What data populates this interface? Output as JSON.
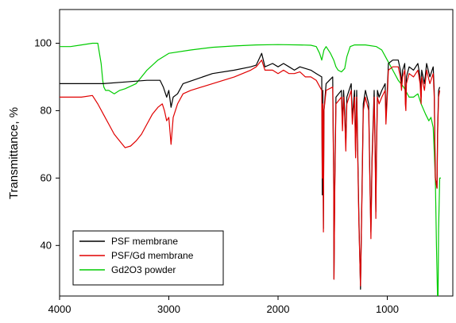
{
  "chart_data": {
    "type": "line",
    "title": "",
    "xlabel": "",
    "ylabel": "Transmittance, %",
    "xlim": [
      4000,
      400
    ],
    "ylim": [
      25,
      110
    ],
    "x_reversed": true,
    "xticks": [
      4000,
      3000,
      2000,
      1000
    ],
    "yticks": [
      40,
      60,
      80,
      100
    ],
    "grid": false,
    "legend_position": "bottom-left",
    "series": [
      {
        "name": "PSF membrane",
        "color": "#000000",
        "points": [
          [
            4000,
            88
          ],
          [
            3800,
            88
          ],
          [
            3600,
            88
          ],
          [
            3400,
            88.5
          ],
          [
            3200,
            89
          ],
          [
            3080,
            89
          ],
          [
            3050,
            87
          ],
          [
            3020,
            84
          ],
          [
            3000,
            86
          ],
          [
            2980,
            81
          ],
          [
            2960,
            84
          ],
          [
            2920,
            85
          ],
          [
            2870,
            88
          ],
          [
            2600,
            91
          ],
          [
            2400,
            92
          ],
          [
            2250,
            93
          ],
          [
            2200,
            93.5
          ],
          [
            2150,
            97
          ],
          [
            2120,
            93
          ],
          [
            2050,
            94
          ],
          [
            2000,
            93
          ],
          [
            1950,
            94
          ],
          [
            1900,
            93
          ],
          [
            1850,
            92
          ],
          [
            1800,
            93
          ],
          [
            1750,
            92.5
          ],
          [
            1700,
            92
          ],
          [
            1650,
            91
          ],
          [
            1600,
            90
          ],
          [
            1595,
            55
          ],
          [
            1590,
            86
          ],
          [
            1585,
            45
          ],
          [
            1580,
            80
          ],
          [
            1560,
            88
          ],
          [
            1500,
            90
          ],
          [
            1490,
            58
          ],
          [
            1488,
            30
          ],
          [
            1480,
            60
          ],
          [
            1470,
            84
          ],
          [
            1420,
            86
          ],
          [
            1410,
            76
          ],
          [
            1400,
            86
          ],
          [
            1390,
            80
          ],
          [
            1380,
            70
          ],
          [
            1370,
            84
          ],
          [
            1330,
            88
          ],
          [
            1320,
            78
          ],
          [
            1300,
            86
          ],
          [
            1290,
            68
          ],
          [
            1280,
            86
          ],
          [
            1260,
            48
          ],
          [
            1245,
            27
          ],
          [
            1230,
            60
          ],
          [
            1220,
            82
          ],
          [
            1200,
            86
          ],
          [
            1170,
            82
          ],
          [
            1160,
            62
          ],
          [
            1150,
            44
          ],
          [
            1140,
            66
          ],
          [
            1120,
            86
          ],
          [
            1110,
            66
          ],
          [
            1105,
            50
          ],
          [
            1100,
            66
          ],
          [
            1090,
            86
          ],
          [
            1075,
            84
          ],
          [
            1050,
            86
          ],
          [
            1020,
            88
          ],
          [
            1012,
            78
          ],
          [
            1000,
            86
          ],
          [
            990,
            94
          ],
          [
            950,
            95
          ],
          [
            900,
            95
          ],
          [
            880,
            92
          ],
          [
            870,
            88
          ],
          [
            860,
            92
          ],
          [
            840,
            94
          ],
          [
            835,
            84
          ],
          [
            830,
            82
          ],
          [
            825,
            90
          ],
          [
            800,
            93
          ],
          [
            760,
            92
          ],
          [
            720,
            94
          ],
          [
            700,
            90
          ],
          [
            690,
            84
          ],
          [
            685,
            92
          ],
          [
            660,
            88
          ],
          [
            640,
            94
          ],
          [
            610,
            90
          ],
          [
            580,
            93
          ],
          [
            570,
            86
          ],
          [
            560,
            60
          ],
          [
            545,
            57
          ],
          [
            540,
            74
          ],
          [
            530,
            86
          ],
          [
            520,
            87
          ]
        ]
      },
      {
        "name": "PSF/Gd membrane",
        "color": "#e00000",
        "points": [
          [
            4000,
            84
          ],
          [
            3800,
            84
          ],
          [
            3700,
            84.5
          ],
          [
            3650,
            82
          ],
          [
            3600,
            79
          ],
          [
            3550,
            76
          ],
          [
            3500,
            73
          ],
          [
            3450,
            71
          ],
          [
            3400,
            69
          ],
          [
            3350,
            69.5
          ],
          [
            3300,
            71
          ],
          [
            3250,
            73
          ],
          [
            3200,
            76
          ],
          [
            3150,
            79
          ],
          [
            3100,
            81
          ],
          [
            3060,
            82
          ],
          [
            3040,
            80
          ],
          [
            3020,
            77
          ],
          [
            3000,
            78
          ],
          [
            2980,
            70
          ],
          [
            2960,
            78
          ],
          [
            2920,
            82
          ],
          [
            2870,
            85
          ],
          [
            2800,
            86
          ],
          [
            2600,
            88
          ],
          [
            2400,
            90
          ],
          [
            2250,
            92
          ],
          [
            2200,
            93
          ],
          [
            2150,
            95
          ],
          [
            2120,
            92
          ],
          [
            2050,
            92
          ],
          [
            2000,
            91
          ],
          [
            1950,
            92
          ],
          [
            1900,
            91
          ],
          [
            1850,
            91
          ],
          [
            1800,
            91.5
          ],
          [
            1750,
            90
          ],
          [
            1700,
            90
          ],
          [
            1650,
            89
          ],
          [
            1600,
            86
          ],
          [
            1595,
            60
          ],
          [
            1590,
            82
          ],
          [
            1585,
            44
          ],
          [
            1580,
            80
          ],
          [
            1560,
            86
          ],
          [
            1500,
            87
          ],
          [
            1490,
            56
          ],
          [
            1488,
            30
          ],
          [
            1480,
            58
          ],
          [
            1470,
            82
          ],
          [
            1420,
            84
          ],
          [
            1410,
            74
          ],
          [
            1400,
            84
          ],
          [
            1390,
            78
          ],
          [
            1380,
            68
          ],
          [
            1370,
            82
          ],
          [
            1330,
            86
          ],
          [
            1320,
            76
          ],
          [
            1300,
            84
          ],
          [
            1290,
            66
          ],
          [
            1280,
            84
          ],
          [
            1260,
            46
          ],
          [
            1245,
            28
          ],
          [
            1230,
            58
          ],
          [
            1220,
            80
          ],
          [
            1200,
            84
          ],
          [
            1170,
            80
          ],
          [
            1160,
            60
          ],
          [
            1150,
            42
          ],
          [
            1140,
            64
          ],
          [
            1120,
            84
          ],
          [
            1110,
            64
          ],
          [
            1105,
            48
          ],
          [
            1100,
            64
          ],
          [
            1090,
            84
          ],
          [
            1075,
            82
          ],
          [
            1050,
            84
          ],
          [
            1020,
            86
          ],
          [
            1012,
            76
          ],
          [
            1000,
            84
          ],
          [
            990,
            92
          ],
          [
            950,
            93
          ],
          [
            900,
            93
          ],
          [
            880,
            90
          ],
          [
            870,
            86
          ],
          [
            860,
            90
          ],
          [
            840,
            92
          ],
          [
            835,
            82
          ],
          [
            830,
            80
          ],
          [
            825,
            88
          ],
          [
            800,
            91
          ],
          [
            760,
            90
          ],
          [
            720,
            92
          ],
          [
            700,
            88
          ],
          [
            690,
            82
          ],
          [
            685,
            90
          ],
          [
            660,
            86
          ],
          [
            640,
            92
          ],
          [
            610,
            88
          ],
          [
            580,
            91
          ],
          [
            570,
            84
          ],
          [
            560,
            60
          ],
          [
            545,
            57
          ],
          [
            540,
            72
          ],
          [
            530,
            84
          ],
          [
            520,
            86
          ]
        ]
      },
      {
        "name": "Gd2O3 powder",
        "color": "#00cc00",
        "points": [
          [
            4000,
            99
          ],
          [
            3900,
            99
          ],
          [
            3800,
            99.5
          ],
          [
            3700,
            100
          ],
          [
            3650,
            100
          ],
          [
            3620,
            94
          ],
          [
            3605,
            89
          ],
          [
            3595,
            87
          ],
          [
            3580,
            86
          ],
          [
            3550,
            86
          ],
          [
            3500,
            85
          ],
          [
            3450,
            86
          ],
          [
            3400,
            86.5
          ],
          [
            3300,
            88
          ],
          [
            3200,
            92
          ],
          [
            3100,
            95
          ],
          [
            3000,
            97
          ],
          [
            2800,
            98
          ],
          [
            2600,
            98.8
          ],
          [
            2400,
            99.2
          ],
          [
            2200,
            99.5
          ],
          [
            2000,
            99.6
          ],
          [
            1800,
            99.5
          ],
          [
            1700,
            99.4
          ],
          [
            1650,
            99
          ],
          [
            1620,
            97
          ],
          [
            1600,
            95
          ],
          [
            1580,
            98
          ],
          [
            1560,
            99
          ],
          [
            1520,
            97
          ],
          [
            1490,
            95
          ],
          [
            1470,
            93
          ],
          [
            1450,
            92
          ],
          [
            1420,
            91.5
          ],
          [
            1390,
            92.5
          ],
          [
            1370,
            96
          ],
          [
            1340,
            99
          ],
          [
            1300,
            99.5
          ],
          [
            1200,
            99.5
          ],
          [
            1100,
            99
          ],
          [
            1050,
            98
          ],
          [
            1000,
            95
          ],
          [
            950,
            92
          ],
          [
            900,
            89
          ],
          [
            850,
            87
          ],
          [
            800,
            84
          ],
          [
            760,
            84
          ],
          [
            720,
            85
          ],
          [
            690,
            82
          ],
          [
            650,
            79
          ],
          [
            620,
            77
          ],
          [
            600,
            78
          ],
          [
            580,
            75
          ],
          [
            560,
            60
          ],
          [
            550,
            40
          ],
          [
            540,
            24
          ],
          [
            535,
            24
          ],
          [
            530,
            45
          ],
          [
            520,
            60
          ],
          [
            510,
            60
          ]
        ]
      }
    ]
  }
}
